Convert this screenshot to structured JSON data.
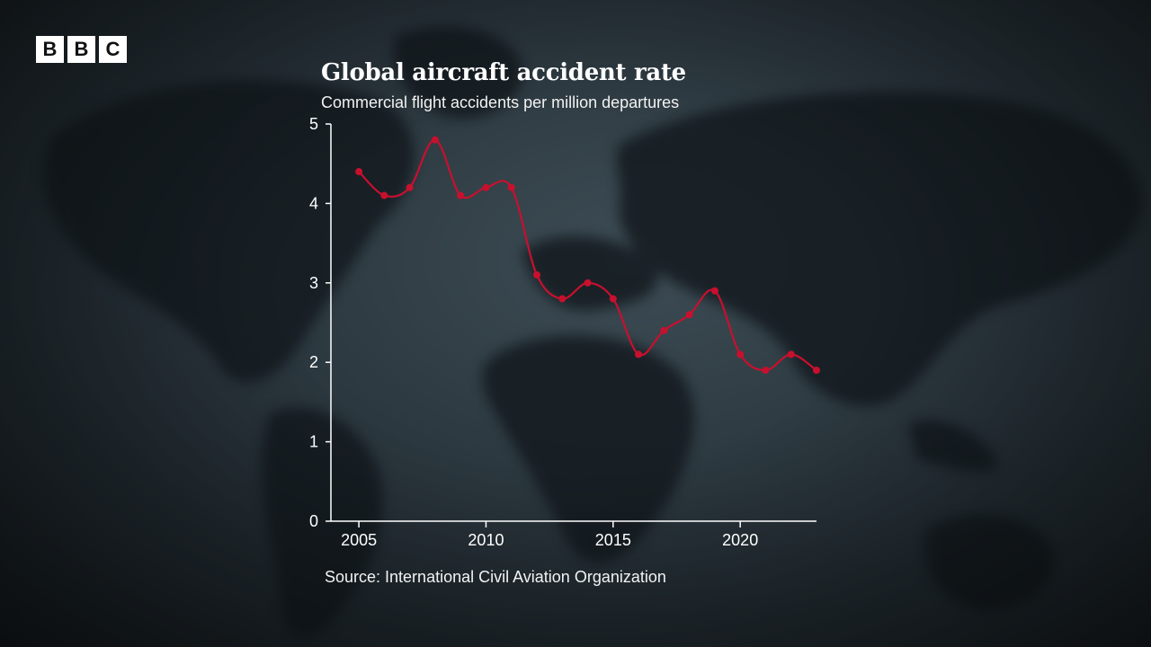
{
  "brand": {
    "blocks": [
      "B",
      "B",
      "C"
    ]
  },
  "chart_data": {
    "type": "line",
    "title": "Global aircraft accident rate",
    "subtitle": "Commercial flight accidents per million departures",
    "source": "Source: International Civil Aviation Organization",
    "xlabel": "",
    "ylabel": "",
    "x": [
      2005,
      2006,
      2007,
      2008,
      2009,
      2010,
      2011,
      2012,
      2013,
      2014,
      2015,
      2016,
      2017,
      2018,
      2019,
      2020,
      2021,
      2022,
      2023
    ],
    "series": [
      {
        "values": [
          4.4,
          4.1,
          4.2,
          4.8,
          4.1,
          4.2,
          4.2,
          3.1,
          2.8,
          3.0,
          2.8,
          2.1,
          2.4,
          2.6,
          2.9,
          2.1,
          1.9,
          2.1,
          1.9
        ]
      }
    ],
    "xlim": [
      2003.9,
      2023
    ],
    "ylim": [
      0,
      5
    ],
    "xticks": [
      2005,
      2010,
      2015,
      2020
    ],
    "yticks": [
      0,
      1,
      2,
      3,
      4,
      5
    ],
    "grid": false,
    "colors": {
      "line": "#c8102e",
      "axis": "#ffffff",
      "text": "#ffffff"
    }
  }
}
